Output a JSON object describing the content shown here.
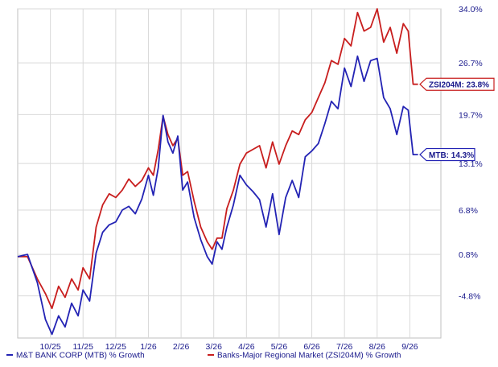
{
  "chart_data": {
    "type": "line",
    "ylim": [
      -10.5,
      34.0
    ],
    "y_ticks": [
      "34.0%",
      "26.7%",
      "19.7%",
      "13.1%",
      "6.8%",
      "0.8%",
      "-4.8%"
    ],
    "y_tick_values": [
      34.0,
      26.7,
      19.7,
      13.1,
      6.8,
      0.8,
      -4.8
    ],
    "x_ticks": [
      "10/25",
      "11/25",
      "12/25",
      "1/26",
      "2/26",
      "3/26",
      "4/26",
      "5/26",
      "6/26",
      "7/26",
      "8/26",
      "9/26"
    ],
    "x_tick_positions": [
      1.0,
      2.0,
      3.0,
      4.0,
      5.0,
      6.0,
      7.0,
      8.0,
      9.0,
      10.0,
      11.0,
      12.0
    ],
    "xlim": [
      0.0,
      12.95
    ],
    "grid": true,
    "legend_position": "bottom",
    "colors": {
      "mtb": "#2323b4",
      "zsi": "#c81e1e",
      "axis_text": "#1a1a8c",
      "grid": "#d9d9d9"
    },
    "series": [
      {
        "name": "M&T BANK CORP (MTB) % Growth",
        "callout": "MTB: 14.3%",
        "last_value": 14.3,
        "x": [
          0.0,
          0.3,
          0.6,
          0.85,
          1.05,
          1.25,
          1.45,
          1.65,
          1.85,
          2.0,
          2.2,
          2.4,
          2.6,
          2.8,
          3.0,
          3.2,
          3.4,
          3.6,
          3.8,
          4.0,
          4.15,
          4.3,
          4.45,
          4.6,
          4.75,
          4.9,
          5.05,
          5.2,
          5.4,
          5.6,
          5.8,
          5.95,
          6.1,
          6.25,
          6.4,
          6.6,
          6.8,
          7.0,
          7.2,
          7.4,
          7.6,
          7.8,
          8.0,
          8.2,
          8.4,
          8.6,
          8.8,
          9.0,
          9.2,
          9.4,
          9.6,
          9.8,
          10.0,
          10.2,
          10.4,
          10.6,
          10.8,
          11.0,
          11.2,
          11.4,
          11.6,
          11.8,
          11.95,
          12.1,
          12.25
        ],
        "values": [
          0.5,
          0.8,
          -3.0,
          -8.0,
          -10.0,
          -7.5,
          -9.0,
          -5.8,
          -7.5,
          -4.0,
          -5.5,
          1.0,
          3.8,
          4.8,
          5.2,
          6.8,
          7.3,
          6.3,
          8.3,
          11.5,
          8.8,
          12.5,
          19.6,
          16.0,
          14.5,
          16.8,
          9.5,
          10.6,
          5.8,
          2.8,
          0.5,
          -0.5,
          2.5,
          1.5,
          4.5,
          7.5,
          11.5,
          10.2,
          9.3,
          8.2,
          4.5,
          9.0,
          3.5,
          8.5,
          10.8,
          8.5,
          14.0,
          14.8,
          15.8,
          18.5,
          21.5,
          20.5,
          26.0,
          23.5,
          27.6,
          24.2,
          27.0,
          27.3,
          22.0,
          20.5,
          17.0,
          20.8,
          20.3,
          14.3,
          14.3
        ]
      },
      {
        "name": "Banks-Major Regional Market (ZSI204M) % Growth",
        "callout": "ZSI204M: 23.8%",
        "last_value": 23.8,
        "x": [
          0.0,
          0.3,
          0.6,
          0.85,
          1.05,
          1.25,
          1.45,
          1.65,
          1.85,
          2.0,
          2.2,
          2.4,
          2.6,
          2.8,
          3.0,
          3.2,
          3.4,
          3.6,
          3.8,
          4.0,
          4.15,
          4.3,
          4.45,
          4.6,
          4.75,
          4.9,
          5.05,
          5.2,
          5.4,
          5.6,
          5.8,
          5.95,
          6.1,
          6.25,
          6.4,
          6.6,
          6.8,
          7.0,
          7.2,
          7.4,
          7.6,
          7.8,
          8.0,
          8.2,
          8.4,
          8.6,
          8.8,
          9.0,
          9.2,
          9.4,
          9.6,
          9.8,
          10.0,
          10.2,
          10.4,
          10.6,
          10.8,
          11.0,
          11.2,
          11.4,
          11.6,
          11.8,
          11.95,
          12.1,
          12.25
        ],
        "values": [
          0.5,
          0.5,
          -2.5,
          -4.5,
          -6.5,
          -3.5,
          -5.0,
          -2.5,
          -4.0,
          -1.0,
          -2.5,
          4.5,
          7.5,
          9.0,
          8.5,
          9.5,
          11.0,
          10.0,
          10.8,
          12.5,
          11.5,
          15.0,
          19.5,
          17.0,
          15.5,
          16.5,
          11.5,
          12.0,
          8.0,
          4.5,
          2.5,
          1.5,
          3.0,
          3.0,
          7.0,
          9.5,
          13.0,
          14.5,
          15.0,
          15.5,
          12.5,
          16.0,
          13.0,
          15.5,
          17.5,
          17.0,
          19.0,
          20.0,
          22.0,
          24.0,
          27.0,
          26.5,
          30.0,
          29.0,
          33.5,
          31.0,
          31.5,
          34.0,
          29.5,
          31.5,
          28.0,
          32.0,
          31.0,
          23.8,
          23.8
        ]
      }
    ]
  }
}
